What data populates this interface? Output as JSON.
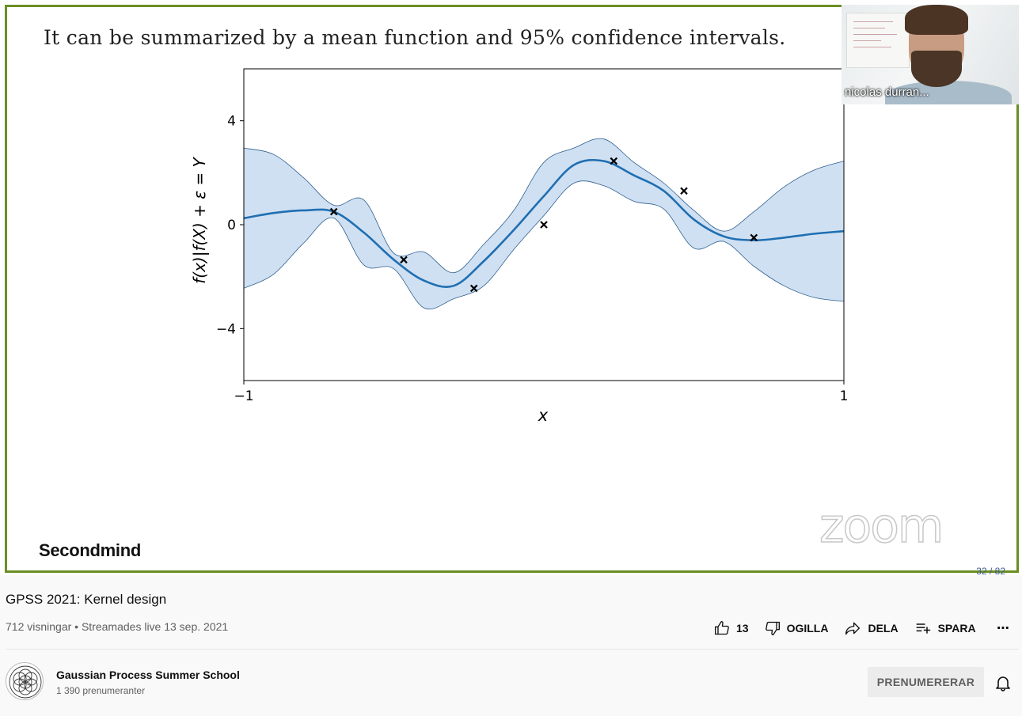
{
  "slide": {
    "title": "It can be summarized by a mean function and 95% confidence intervals.",
    "brand": "Secondmind",
    "watermark": "zoom",
    "page_counter": "32 / 82"
  },
  "webcam": {
    "name": "nicolas durran..."
  },
  "chart_data": {
    "type": "line",
    "xlabel": "x",
    "ylabel": "f(x)|f(X) + ε = Y",
    "xlim": [
      -1,
      1
    ],
    "ylim": [
      -6,
      6
    ],
    "x_ticks": [
      "−1",
      "1"
    ],
    "y_ticks": [
      "4",
      "0",
      "−4"
    ],
    "x_tick_values": [
      -1,
      1
    ],
    "y_tick_values": [
      4,
      0,
      -4
    ],
    "grid": false,
    "colors": {
      "mean": "#1f6fb2",
      "band_fill": "#cfe0f2",
      "band_edge": "#2f5f8f",
      "points": "#000000"
    },
    "mean": {
      "x": [
        -1.0,
        -0.9,
        -0.8,
        -0.7,
        -0.6,
        -0.5,
        -0.4,
        -0.3,
        -0.2,
        -0.1,
        0.0,
        0.1,
        0.2,
        0.3,
        0.4,
        0.5,
        0.6,
        0.7,
        0.8,
        0.9,
        1.0
      ],
      "y": [
        0.25,
        0.45,
        0.55,
        0.5,
        -0.3,
        -1.35,
        -2.15,
        -2.35,
        -1.4,
        -0.2,
        1.1,
        2.3,
        2.45,
        1.9,
        1.3,
        0.2,
        -0.45,
        -0.6,
        -0.5,
        -0.35,
        -0.25
      ]
    },
    "upper": [
      2.95,
      2.7,
      1.8,
      0.75,
      0.95,
      -1.1,
      -1.05,
      -1.85,
      -0.75,
      0.55,
      2.4,
      2.95,
      3.3,
      2.4,
      1.6,
      0.55,
      -0.25,
      0.5,
      1.45,
      2.1,
      2.45
    ],
    "lower": [
      -2.45,
      -1.9,
      -0.7,
      0.25,
      -1.55,
      -1.7,
      -3.2,
      -2.85,
      -2.35,
      -0.95,
      0.35,
      1.6,
      1.5,
      0.9,
      0.6,
      -0.9,
      -0.65,
      -1.6,
      -2.35,
      -2.8,
      -2.95
    ],
    "observations": {
      "x": [
        -0.7,
        -0.467,
        -0.233,
        0.0,
        0.233,
        0.467,
        0.7
      ],
      "y": [
        0.5,
        -1.35,
        -2.45,
        0.0,
        2.45,
        1.3,
        -0.5
      ]
    }
  },
  "video": {
    "title": "GPSS 2021: Kernel design",
    "meta": "712 visningar • Streamades live 13 sep. 2021"
  },
  "actions": {
    "like_count": "13",
    "dislike_label": "OGILLA",
    "share_label": "DELA",
    "save_label": "SPARA",
    "more_label": "⋯"
  },
  "channel": {
    "name": "Gaussian Process Summer School",
    "subscribers": "1 390 prenumeranter",
    "subscribe_label": "PRENUMERERAR"
  }
}
